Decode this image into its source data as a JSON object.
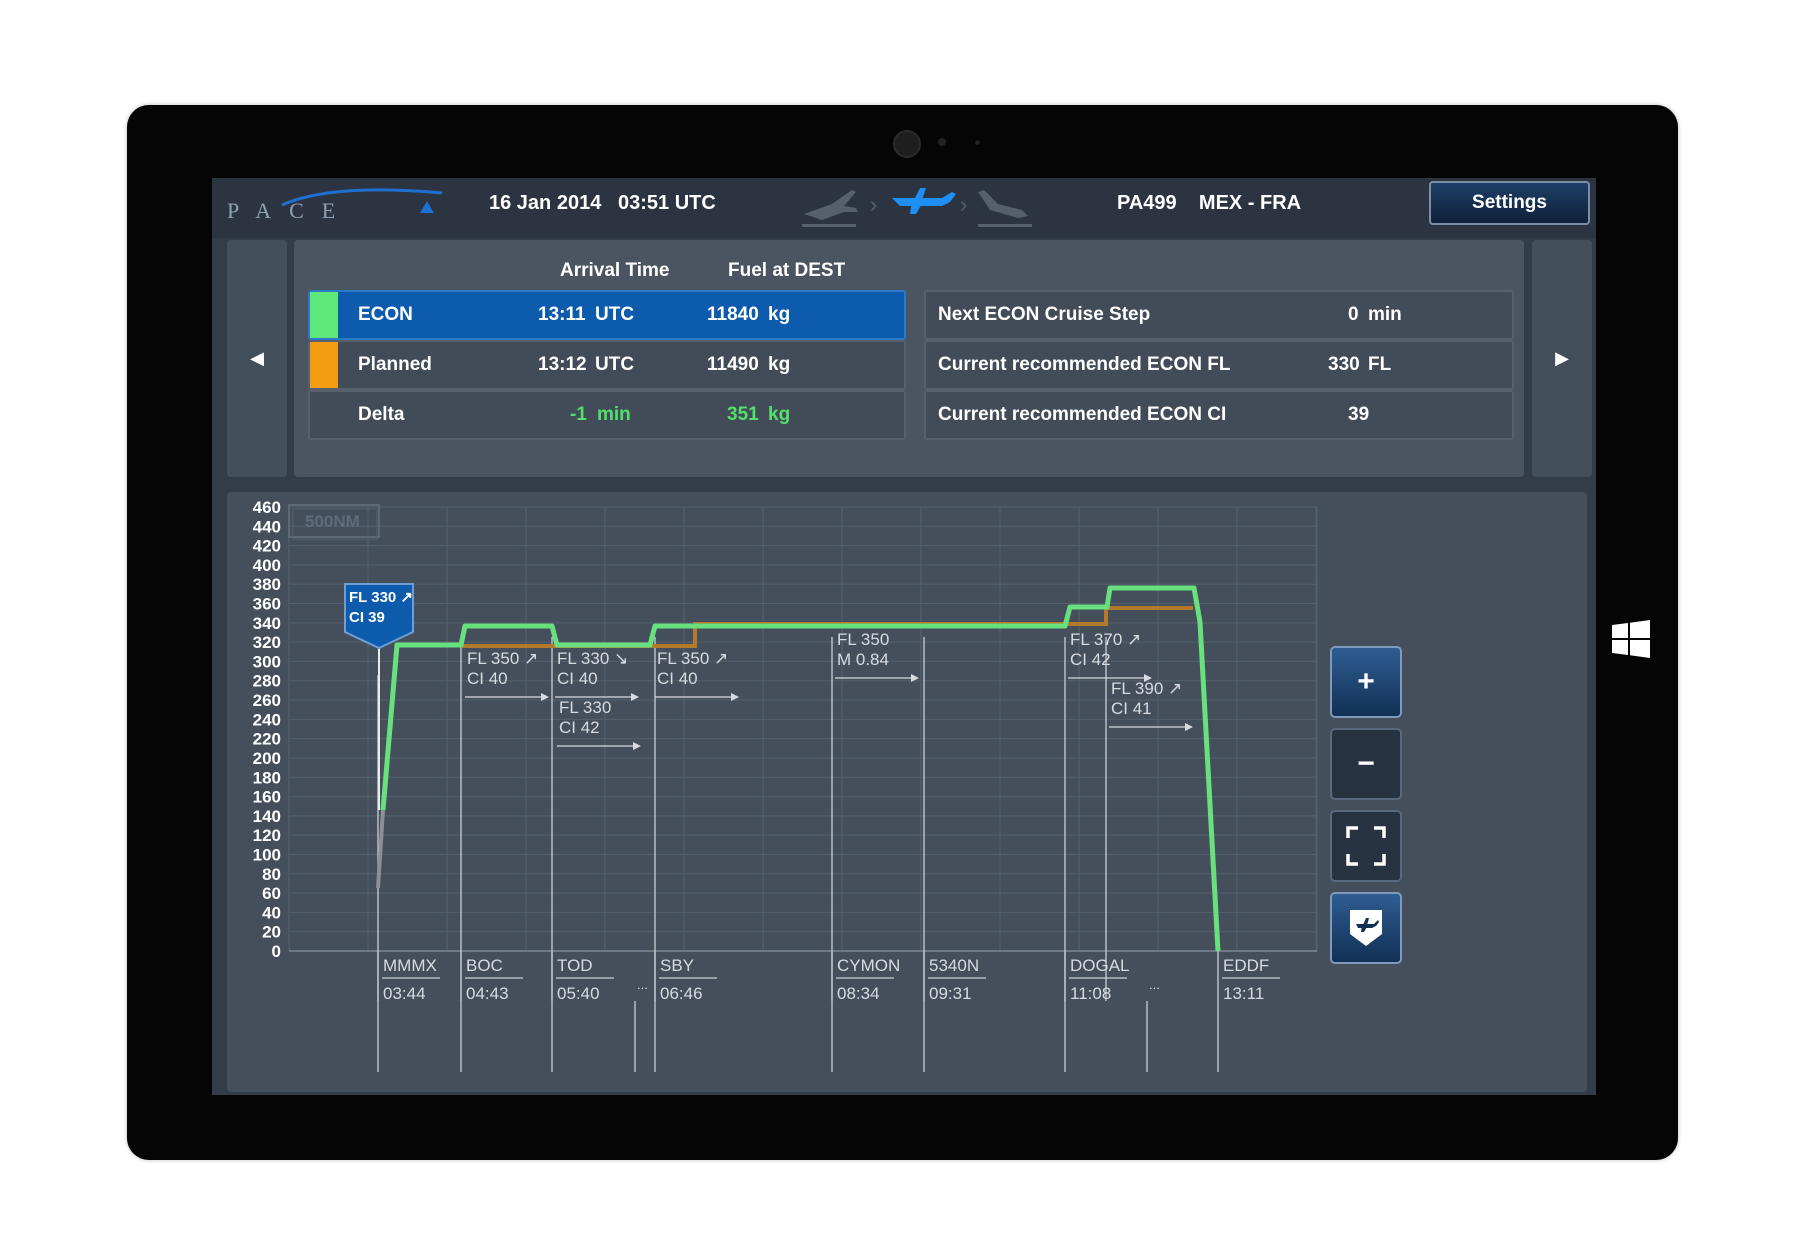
{
  "app": {
    "logo": "PACE",
    "date": "16 Jan 2014",
    "time": "03:51 UTC",
    "flight_number": "PA499",
    "route": "MEX - FRA",
    "settings_label": "Settings",
    "active_phase": "cruise"
  },
  "summary": {
    "header_arrival": "Arrival Time",
    "header_fuel": "Fuel at DEST",
    "rows": [
      {
        "label": "ECON",
        "arr_time": "13:11",
        "arr_unit": "UTC",
        "fuel": "11840",
        "fuel_unit": "kg",
        "swatch": "#5fe87a",
        "active": true
      },
      {
        "label": "Planned",
        "arr_time": "13:12",
        "arr_unit": "UTC",
        "fuel": "11490",
        "fuel_unit": "kg",
        "swatch": "#f39c12",
        "active": false
      },
      {
        "label": "Delta",
        "arr_time": "-1",
        "arr_unit": "min",
        "fuel": "351",
        "fuel_unit": "kg",
        "swatch": "",
        "active": false
      }
    ],
    "recommendations": [
      {
        "label": "Next ECON Cruise Step",
        "value": "0",
        "unit": "min"
      },
      {
        "label": "Current recommended ECON FL",
        "value": "330",
        "unit": "FL"
      },
      {
        "label": "Current recommended ECON CI",
        "value": "39",
        "unit": ""
      }
    ]
  },
  "chart": {
    "scale_label": "500NM",
    "y_ticks": [
      "460",
      "440",
      "420",
      "400",
      "380",
      "360",
      "340",
      "320",
      "300",
      "280",
      "260",
      "240",
      "220",
      "200",
      "180",
      "160",
      "140",
      "120",
      "100",
      "80",
      "60",
      "40",
      "20",
      "0"
    ],
    "current_marker": {
      "fl": "FL 330 ↗",
      "ci": "CI 39"
    },
    "econ_color": "#68e07e",
    "planned_color": "#b37a2c",
    "waypoints": [
      {
        "name": "MMMX",
        "time": "03:44"
      },
      {
        "name": "BOC",
        "time": "04:43"
      },
      {
        "name": "TOD",
        "time": "05:40"
      },
      {
        "name": "SBY",
        "time": "06:46"
      },
      {
        "name": "CYMON",
        "time": "08:34"
      },
      {
        "name": "5340N",
        "time": "09:31"
      },
      {
        "name": "DOGAL",
        "time": "11:08"
      },
      {
        "name": "EDDF",
        "time": "13:11"
      }
    ],
    "ellipsis": "...",
    "steps": [
      {
        "line1": "FL 350 ↗",
        "line2": "CI 40"
      },
      {
        "line1": "FL 330 ↘",
        "line2": "CI 40"
      },
      {
        "line1": "FL 330",
        "line2": "CI 42"
      },
      {
        "line1": "FL 350 ↗",
        "line2": "CI 40"
      },
      {
        "line1": "FL 350",
        "line2": "M 0.84"
      },
      {
        "line1": "FL 370 ↗",
        "line2": "CI 42"
      },
      {
        "line1": "FL 390 ↗",
        "line2": "CI 41"
      }
    ]
  },
  "controls": {
    "zoom_in": "+",
    "zoom_out": "−"
  }
}
